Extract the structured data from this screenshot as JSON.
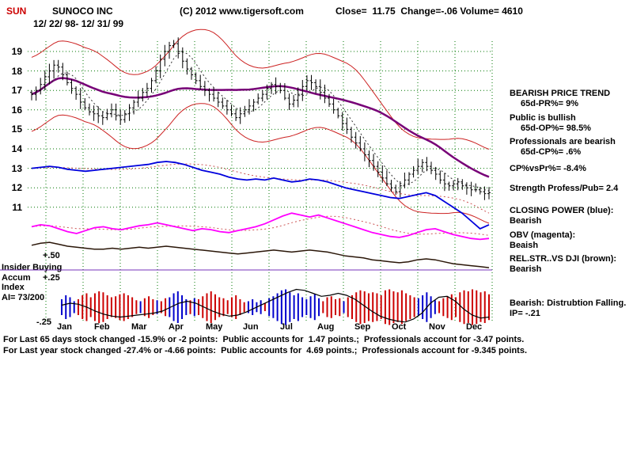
{
  "header": {
    "ticker": "SUN",
    "title": "SUNOCO INC",
    "copyright": "(C) 2012 www.tigersoft.com",
    "quote": "Close=  11.75  Change=-.06 Volume= 4610",
    "date_range": "12/ 22/ 98- 12/ 31/ 99"
  },
  "left_labels": {
    "plus50": "+.50",
    "insider": "Insider Buying",
    "accum": "Accum",
    "plus25": "+.25",
    "index": "Index",
    "ai": "AI= 73/200",
    "minus25": "-.25"
  },
  "right_panel": [
    "BEARISH PRICE TREND",
    "65d-PR%= 9%",
    "Public is bullish",
    "65d-OP%= 98.5%",
    "Professionals are bearish",
    "65d-CP%= .6%",
    "CP%vsPr%= -8.4%",
    "Strength Profess/Pub= 2.4",
    "CLOSING POWER (blue):",
    "Bearish",
    "OBV (magenta):",
    "Beaish",
    "REL.STR..VS DJI (brown):",
    "Bearish",
    "Bearish: Distrubtion Falling.",
    "IP= -.21"
  ],
  "footer": [
    "For Last 65 days stock changed -15.9% or -2 points:  Public accounts for  1.47 points.;  Professionals account for -3.47 points.",
    "For Last year stock changed -27.4% or -4.66 points:  Public accounts for  4.69 points.;  Professionals account for -9.345 points."
  ],
  "chart_data": {
    "type": "candlestick",
    "title": "SUNOCO INC 12/22/98 - 12/31/99 daily bars with bands, moving averages, Closing Power, OBV, Rel.Str. vs DJI and Accumulation Index",
    "x_months": [
      "Jan",
      "Feb",
      "Mar",
      "Apr",
      "May",
      "Jun",
      "Jul",
      "Aug",
      "Sep",
      "Oct",
      "Nov",
      "Dec"
    ],
    "y_ticks": [
      19,
      18,
      17,
      16,
      15,
      14,
      13,
      12,
      11
    ],
    "ylim": [
      10.2,
      20.0
    ],
    "close": [
      16.8,
      17.0,
      17.3,
      17.7,
      18.0,
      18.3,
      18.2,
      17.8,
      17.4,
      17.1,
      16.8,
      16.4,
      16.1,
      15.9,
      15.8,
      15.7,
      15.6,
      15.8,
      16.0,
      15.7,
      15.5,
      15.8,
      16.1,
      16.4,
      16.6,
      16.9,
      17.1,
      17.5,
      18.0,
      18.6,
      19.0,
      19.3,
      19.4,
      19.0,
      18.5,
      18.1,
      17.8,
      17.5,
      17.2,
      17.0,
      16.8,
      16.6,
      16.4,
      16.2,
      16.0,
      15.8,
      15.6,
      15.8,
      16.0,
      16.2,
      16.4,
      16.6,
      16.8,
      17.1,
      17.3,
      17.2,
      17.0,
      16.6,
      16.3,
      16.5,
      16.8,
      17.2,
      17.5,
      17.4,
      17.2,
      16.9,
      16.6,
      16.3,
      16.0,
      15.7,
      15.3,
      15.0,
      14.6,
      14.3,
      14.0,
      13.7,
      13.4,
      13.1,
      12.8,
      12.5,
      12.2,
      12.0,
      11.8,
      12.1,
      12.4,
      12.7,
      12.9,
      13.1,
      13.3,
      13.1,
      12.9,
      12.7,
      12.4,
      12.2,
      12.1,
      12.2,
      12.3,
      12.1,
      12.0,
      11.9,
      11.9,
      11.8,
      11.7,
      11.75
    ],
    "series": [
      {
        "name": "Closing Power",
        "color": "#0000dd",
        "values": [
          13.0,
          13.05,
          13.1,
          13.05,
          12.95,
          12.9,
          12.85,
          12.9,
          12.95,
          13.0,
          13.05,
          13.1,
          13.15,
          13.2,
          13.3,
          13.35,
          13.3,
          13.2,
          13.05,
          12.9,
          12.8,
          12.7,
          12.55,
          12.45,
          12.4,
          12.45,
          12.4,
          12.5,
          12.4,
          12.3,
          12.35,
          12.45,
          12.4,
          12.3,
          12.15,
          12.0,
          11.9,
          11.8,
          11.7,
          11.6,
          11.5,
          11.45,
          11.55,
          11.65,
          11.75,
          11.6,
          11.3,
          11.0,
          10.7,
          10.3,
          9.9,
          10.1
        ]
      },
      {
        "name": "OBV",
        "color": "#ff00ff",
        "values": [
          10.0,
          10.1,
          10.05,
          9.9,
          9.75,
          9.65,
          9.8,
          9.95,
          10.0,
          9.9,
          9.85,
          9.95,
          10.05,
          10.1,
          10.2,
          10.1,
          10.0,
          9.9,
          9.8,
          9.9,
          9.85,
          9.75,
          9.7,
          9.8,
          9.9,
          10.0,
          10.15,
          10.35,
          10.55,
          10.7,
          10.6,
          10.5,
          10.6,
          10.45,
          10.3,
          10.15,
          10.0,
          9.85,
          9.7,
          9.6,
          9.5,
          9.45,
          9.55,
          9.7,
          9.85,
          9.9,
          9.75,
          9.6,
          9.5,
          9.4,
          9.35,
          9.4
        ]
      },
      {
        "name": "Rel.Str. vs DJI",
        "color": "#2a1608",
        "values": [
          9.05,
          9.15,
          9.2,
          9.1,
          9.0,
          8.95,
          8.9,
          8.85,
          8.85,
          8.9,
          8.85,
          8.9,
          8.95,
          8.9,
          8.95,
          9.0,
          8.95,
          8.9,
          8.85,
          8.8,
          8.75,
          8.7,
          8.65,
          8.6,
          8.65,
          8.7,
          8.75,
          8.8,
          8.75,
          8.7,
          8.75,
          8.8,
          8.75,
          8.7,
          8.6,
          8.5,
          8.45,
          8.4,
          8.3,
          8.25,
          8.2,
          8.15,
          8.2,
          8.3,
          8.35,
          8.3,
          8.2,
          8.1,
          8.05,
          8.0,
          7.95,
          7.9
        ]
      }
    ],
    "accum_bars": [
      0.4,
      0.6,
      0.5,
      0.3,
      -0.4,
      -0.6,
      -0.7,
      -0.5,
      -0.7,
      -0.8,
      -0.75,
      -0.6,
      -0.5,
      -0.55,
      -0.65,
      -0.7,
      -0.6,
      -0.5,
      -0.35,
      0.3,
      -0.45,
      -0.55,
      -0.4,
      0.35,
      -0.3,
      -0.45,
      0.5,
      0.7,
      0.8,
      0.6,
      0.4,
      -0.35,
      0.45,
      -0.4,
      -0.55,
      -0.7,
      -0.8,
      -0.65,
      -0.5,
      -0.45,
      -0.35,
      -0.5,
      -0.6,
      -0.4,
      -0.25,
      0.3,
      0.4,
      0.25,
      0.35,
      -0.2,
      0.45,
      0.55,
      0.7,
      0.85,
      0.9,
      0.75,
      0.6,
      0.7,
      0.5,
      0.4,
      0.55,
      0.65,
      0.45,
      -0.3,
      -0.5,
      -0.55,
      -0.4,
      -0.45,
      0.3,
      -0.5,
      -0.6,
      -0.75,
      -0.85,
      -0.8,
      -0.7,
      -0.75,
      -0.7,
      -0.6,
      -0.85,
      -0.9,
      -0.8,
      -0.75,
      -0.85,
      -0.7,
      -0.6,
      -0.5,
      0.45,
      0.6,
      0.75,
      0.55,
      0.35,
      -0.3,
      -0.45,
      -0.55,
      -0.65,
      -0.5,
      -0.75,
      -0.85,
      -0.8,
      -0.9,
      -0.85,
      -0.75,
      -0.8,
      -0.65
    ],
    "ai_line": [
      0.1,
      0.2,
      0.15,
      0.0,
      -0.2,
      -0.35,
      -0.45,
      -0.5,
      -0.45,
      -0.4,
      -0.35,
      -0.3,
      -0.2,
      0.0,
      0.2,
      0.3,
      0.2,
      0.0,
      -0.2,
      -0.35,
      -0.45,
      -0.4,
      -0.25,
      -0.05,
      0.15,
      0.35,
      0.55,
      0.75,
      0.9,
      0.85,
      0.7,
      0.55,
      0.6,
      0.7,
      0.6,
      0.4,
      0.1,
      -0.2,
      -0.45,
      -0.6,
      -0.7,
      -0.75,
      -0.6,
      -0.3,
      0.2,
      0.5,
      0.55,
      0.3,
      -0.1,
      -0.4,
      -0.55,
      -0.5
    ],
    "colors": {
      "grid": "#007700",
      "price_bar": "#000000",
      "band": "#cc2222",
      "long_ma": "#770077",
      "short_ma_dotted": "#333333",
      "closing_power": "#0000dd",
      "obv": "#ff00ff",
      "rel_str": "#2a1608",
      "accum_pos": "#0000cc",
      "accum_neg": "#cc0000",
      "separator": "#7733bb",
      "ticker_red": "#cc0000"
    }
  }
}
